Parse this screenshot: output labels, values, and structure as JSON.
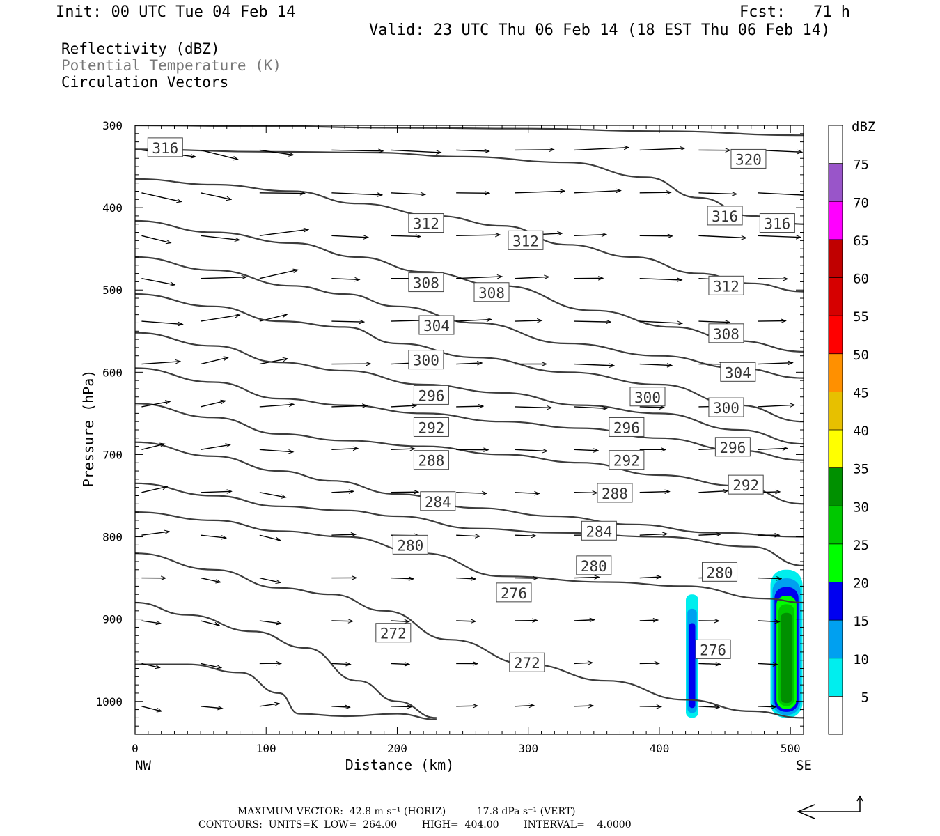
{
  "header": {
    "init": "Init: 00 UTC Tue 04 Feb 14",
    "fcst": "Fcst:   71 h",
    "valid": "Valid: 23 UTC Thu 06 Feb 14 (18 EST Thu 06 Feb 14)",
    "fields": [
      "Reflectivity (dBZ)",
      "Potential Temperature (K)",
      "Circulation Vectors"
    ]
  },
  "footer": {
    "max_vector": "MAXIMUM VECTOR:  42.8 m s⁻¹ (HORIZ)          17.8 dPa s⁻¹ (VERT)",
    "contours": "CONTOURS:  UNITS=K  LOW=  264.00        HIGH=  404.00        INTERVAL=    4.0000"
  },
  "chart_data": {
    "type": "contour",
    "xlabel": "Distance (km)",
    "ylabel": "Pressure (hPa)",
    "xlim": [
      0,
      510
    ],
    "ylim": [
      1040,
      300
    ],
    "y_log_scale": false,
    "x_ticks": [
      0,
      100,
      200,
      300,
      400,
      500
    ],
    "y_ticks": [
      300,
      400,
      500,
      600,
      700,
      800,
      900,
      1000
    ],
    "x_end_labels": {
      "left": "NW",
      "right": "SE"
    },
    "theta_contours": [
      {
        "level": 320,
        "points": [
          [
            0,
            300
          ],
          [
            100,
            301
          ],
          [
            200,
            303
          ],
          [
            300,
            304
          ],
          [
            400,
            307
          ],
          [
            510,
            312
          ]
        ]
      },
      {
        "level": 316,
        "points": [
          [
            0,
            329
          ],
          [
            100,
            332
          ],
          [
            180,
            333
          ],
          [
            250,
            338
          ],
          [
            330,
            345
          ],
          [
            390,
            363
          ],
          [
            430,
            388
          ],
          [
            470,
            410
          ],
          [
            510,
            420
          ]
        ]
      },
      {
        "level": 312,
        "points": [
          [
            0,
            365
          ],
          [
            60,
            372
          ],
          [
            120,
            380
          ],
          [
            170,
            395
          ],
          [
            230,
            410
          ],
          [
            280,
            422
          ],
          [
            330,
            445
          ],
          [
            380,
            460
          ],
          [
            430,
            480
          ],
          [
            470,
            492
          ],
          [
            510,
            502
          ]
        ]
      },
      {
        "level": 308,
        "points": [
          [
            0,
            416
          ],
          [
            60,
            430
          ],
          [
            120,
            443
          ],
          [
            170,
            460
          ],
          [
            220,
            478
          ],
          [
            280,
            495
          ],
          [
            350,
            525
          ],
          [
            410,
            545
          ],
          [
            460,
            562
          ],
          [
            510,
            575
          ]
        ]
      },
      {
        "level": 304,
        "points": [
          [
            0,
            460
          ],
          [
            60,
            476
          ],
          [
            120,
            495
          ],
          [
            160,
            505
          ],
          [
            200,
            520
          ],
          [
            260,
            540
          ],
          [
            330,
            565
          ],
          [
            400,
            580
          ],
          [
            460,
            595
          ],
          [
            510,
            607
          ]
        ]
      },
      {
        "level": 300,
        "points": [
          [
            0,
            505
          ],
          [
            60,
            520
          ],
          [
            110,
            538
          ],
          [
            160,
            545
          ],
          [
            200,
            565
          ],
          [
            260,
            582
          ],
          [
            330,
            600
          ],
          [
            400,
            615
          ],
          [
            460,
            640
          ],
          [
            510,
            660
          ]
        ]
      },
      {
        "level": 296,
        "points": [
          [
            0,
            552
          ],
          [
            60,
            568
          ],
          [
            110,
            588
          ],
          [
            160,
            598
          ],
          [
            220,
            615
          ],
          [
            280,
            625
          ],
          [
            340,
            640
          ],
          [
            400,
            650
          ],
          [
            460,
            670
          ],
          [
            510,
            687
          ]
        ]
      },
      {
        "level": 292,
        "points": [
          [
            0,
            595
          ],
          [
            60,
            612
          ],
          [
            110,
            632
          ],
          [
            160,
            640
          ],
          [
            220,
            650
          ],
          [
            280,
            660
          ],
          [
            340,
            668
          ],
          [
            400,
            680
          ],
          [
            460,
            695
          ],
          [
            510,
            707
          ]
        ]
      },
      {
        "level": 288,
        "points": [
          [
            0,
            638
          ],
          [
            60,
            655
          ],
          [
            110,
            675
          ],
          [
            160,
            683
          ],
          [
            220,
            690
          ],
          [
            280,
            700
          ],
          [
            340,
            710
          ],
          [
            400,
            725
          ],
          [
            460,
            738
          ],
          [
            510,
            760
          ]
        ]
      },
      {
        "level": 284,
        "points": [
          [
            0,
            685
          ],
          [
            60,
            702
          ],
          [
            110,
            720
          ],
          [
            150,
            732
          ],
          [
            200,
            748
          ],
          [
            260,
            765
          ],
          [
            320,
            775
          ],
          [
            380,
            785
          ],
          [
            440,
            795
          ],
          [
            510,
            800
          ]
        ]
      },
      {
        "level": 280,
        "points": [
          [
            0,
            735
          ],
          [
            60,
            750
          ],
          [
            110,
            763
          ],
          [
            160,
            768
          ],
          [
            200,
            775
          ],
          [
            260,
            790
          ],
          [
            320,
            795
          ],
          [
            400,
            800
          ],
          [
            470,
            812
          ],
          [
            510,
            835
          ]
        ]
      },
      {
        "level": 276,
        "points": [
          [
            0,
            770
          ],
          [
            60,
            780
          ],
          [
            110,
            793
          ],
          [
            160,
            800
          ],
          [
            220,
            820
          ],
          [
            280,
            848
          ],
          [
            360,
            855
          ],
          [
            420,
            860
          ],
          [
            480,
            875
          ],
          [
            510,
            880
          ]
        ]
      },
      {
        "level": 272,
        "points": [
          [
            0,
            820
          ],
          [
            60,
            840
          ],
          [
            110,
            862
          ],
          [
            150,
            870
          ],
          [
            190,
            890
          ],
          [
            240,
            925
          ],
          [
            300,
            955
          ],
          [
            360,
            975
          ],
          [
            420,
            998
          ],
          [
            470,
            1012
          ],
          [
            510,
            1020
          ]
        ]
      },
      {
        "level": 268,
        "points": [
          [
            0,
            880
          ],
          [
            40,
            895
          ],
          [
            90,
            915
          ],
          [
            130,
            935
          ],
          [
            170,
            975
          ],
          [
            200,
            1000
          ],
          [
            230,
            1020
          ]
        ]
      },
      {
        "level": 264,
        "points": [
          [
            0,
            955
          ],
          [
            40,
            955
          ],
          [
            80,
            965
          ],
          [
            110,
            990
          ],
          [
            125,
            1015
          ],
          [
            160,
            1018
          ],
          [
            200,
            1015
          ],
          [
            230,
            1022
          ]
        ]
      }
    ],
    "theta_labels": [
      {
        "text": "316",
        "x": 23,
        "y": 327
      },
      {
        "text": "320",
        "x": 468,
        "y": 341
      },
      {
        "text": "316",
        "x": 450,
        "y": 410
      },
      {
        "text": "316",
        "x": 490,
        "y": 419
      },
      {
        "text": "312",
        "x": 222,
        "y": 419
      },
      {
        "text": "312",
        "x": 298,
        "y": 440
      },
      {
        "text": "312",
        "x": 451,
        "y": 495
      },
      {
        "text": "308",
        "x": 222,
        "y": 491
      },
      {
        "text": "308",
        "x": 272,
        "y": 503
      },
      {
        "text": "308",
        "x": 451,
        "y": 553
      },
      {
        "text": "304",
        "x": 230,
        "y": 543
      },
      {
        "text": "304",
        "x": 460,
        "y": 600
      },
      {
        "text": "300",
        "x": 222,
        "y": 585
      },
      {
        "text": "300",
        "x": 391,
        "y": 630
      },
      {
        "text": "300",
        "x": 451,
        "y": 643
      },
      {
        "text": "296",
        "x": 226,
        "y": 628
      },
      {
        "text": "296",
        "x": 375,
        "y": 667
      },
      {
        "text": "296",
        "x": 456,
        "y": 691
      },
      {
        "text": "292",
        "x": 226,
        "y": 667
      },
      {
        "text": "292",
        "x": 375,
        "y": 707
      },
      {
        "text": "292",
        "x": 466,
        "y": 737
      },
      {
        "text": "288",
        "x": 226,
        "y": 707
      },
      {
        "text": "288",
        "x": 366,
        "y": 747
      },
      {
        "text": "284",
        "x": 231,
        "y": 757
      },
      {
        "text": "284",
        "x": 354,
        "y": 793
      },
      {
        "text": "280",
        "x": 210,
        "y": 810
      },
      {
        "text": "280",
        "x": 350,
        "y": 835
      },
      {
        "text": "280",
        "x": 446,
        "y": 843
      },
      {
        "text": "276",
        "x": 289,
        "y": 868
      },
      {
        "text": "276",
        "x": 441,
        "y": 937
      },
      {
        "text": "272",
        "x": 197,
        "y": 917
      },
      {
        "text": "272",
        "x": 299,
        "y": 953
      }
    ],
    "reflectivity_cells": [
      {
        "x": 425,
        "p_top": 870,
        "p_bottom": 1020,
        "max_dbz": 15
      },
      {
        "x": 497,
        "p_top": 840,
        "p_bottom": 1020,
        "max_dbz": 30
      }
    ],
    "colorbar": {
      "title": "dBZ",
      "levels": [
        5,
        10,
        15,
        20,
        25,
        30,
        35,
        40,
        45,
        50,
        55,
        60,
        65,
        70,
        75
      ],
      "colors": [
        "#ffffff",
        "#00eeee",
        "#00a0f0",
        "#0000f0",
        "#00ff00",
        "#00c800",
        "#009000",
        "#ffff00",
        "#e7c000",
        "#ff9000",
        "#ff0000",
        "#d60000",
        "#c00000",
        "#ff00ff",
        "#9955c9",
        "#ffffff"
      ]
    },
    "reference_vector": {
      "horizontal_ms": 42.8,
      "vertical_dpas": 17.8
    }
  }
}
